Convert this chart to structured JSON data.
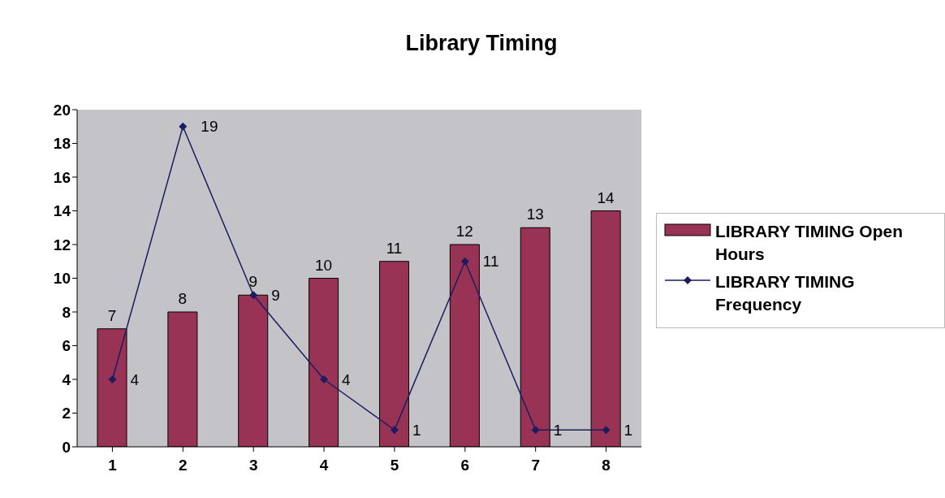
{
  "chart_data": {
    "type": "bar",
    "title": "Library Timing",
    "categories": [
      "1",
      "2",
      "3",
      "4",
      "5",
      "6",
      "7",
      "8"
    ],
    "series": [
      {
        "name": "LIBRARY TIMING Open Hours",
        "color": "#993355",
        "values": [
          7,
          8,
          9,
          10,
          11,
          12,
          13,
          14
        ]
      },
      {
        "name": "LIBRARY TIMING Frequency",
        "type": "line",
        "color": "#1c1c5e",
        "values": [
          4,
          19,
          9,
          4,
          1,
          11,
          1,
          1
        ]
      }
    ],
    "ylim": [
      0,
      20
    ],
    "yticks": [
      0,
      2,
      4,
      6,
      8,
      10,
      12,
      14,
      16,
      18,
      20
    ],
    "grid": false,
    "legend": "right",
    "marker": "diamond",
    "line_style": "solid",
    "data_labels": true
  }
}
